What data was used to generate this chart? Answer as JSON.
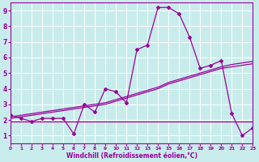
{
  "xlabel": "Windchill (Refroidissement éolien,°C)",
  "xlim": [
    0,
    23
  ],
  "ylim": [
    0.5,
    9.5
  ],
  "xticks": [
    0,
    1,
    2,
    3,
    4,
    5,
    6,
    7,
    8,
    9,
    10,
    11,
    12,
    13,
    14,
    15,
    16,
    17,
    18,
    19,
    20,
    21,
    22,
    23
  ],
  "yticks": [
    1,
    2,
    3,
    4,
    5,
    6,
    7,
    8,
    9
  ],
  "bg_color": "#c8ecec",
  "line_color": "#990099",
  "grid_color": "#ffffff",
  "series1_x": [
    0,
    1,
    2,
    3,
    4,
    5,
    6,
    7,
    8,
    9,
    10,
    11,
    12,
    13,
    14,
    15,
    16,
    17,
    18,
    19,
    20,
    21,
    22,
    23
  ],
  "series1_y": [
    2.3,
    2.1,
    1.9,
    2.1,
    2.1,
    2.1,
    1.1,
    3.0,
    2.5,
    4.0,
    3.8,
    3.1,
    6.5,
    6.8,
    9.2,
    9.2,
    8.8,
    7.3,
    5.3,
    5.5,
    5.8,
    2.4,
    1.0,
    1.5
  ],
  "series2_x": [
    0,
    1,
    2,
    3,
    4,
    5,
    6,
    7,
    8,
    9,
    10,
    11,
    12,
    13,
    14,
    15,
    16,
    17,
    18,
    19,
    20,
    21,
    22,
    23
  ],
  "series2_y": [
    1.9,
    1.9,
    1.9,
    1.9,
    1.9,
    1.9,
    1.9,
    1.9,
    1.9,
    1.9,
    1.9,
    1.9,
    1.9,
    1.9,
    1.9,
    1.9,
    1.9,
    1.9,
    1.9,
    1.9,
    1.9,
    1.9,
    1.9,
    1.9
  ],
  "series3_x": [
    0,
    1,
    2,
    3,
    4,
    5,
    6,
    7,
    8,
    9,
    10,
    11,
    12,
    13,
    14,
    15,
    16,
    17,
    18,
    19,
    20,
    21,
    22,
    23
  ],
  "series3_y": [
    2.1,
    2.2,
    2.3,
    2.4,
    2.5,
    2.6,
    2.7,
    2.8,
    2.9,
    3.0,
    3.2,
    3.4,
    3.6,
    3.8,
    4.0,
    4.3,
    4.5,
    4.7,
    4.9,
    5.1,
    5.3,
    5.4,
    5.5,
    5.6
  ],
  "series4_x": [
    0,
    1,
    2,
    3,
    4,
    5,
    6,
    7,
    8,
    9,
    10,
    11,
    12,
    13,
    14,
    15,
    16,
    17,
    18,
    19,
    20,
    21,
    22,
    23
  ],
  "series4_y": [
    2.2,
    2.3,
    2.4,
    2.5,
    2.6,
    2.7,
    2.8,
    2.9,
    3.0,
    3.1,
    3.3,
    3.5,
    3.7,
    3.9,
    4.1,
    4.4,
    4.6,
    4.8,
    5.0,
    5.2,
    5.4,
    5.55,
    5.65,
    5.75
  ]
}
